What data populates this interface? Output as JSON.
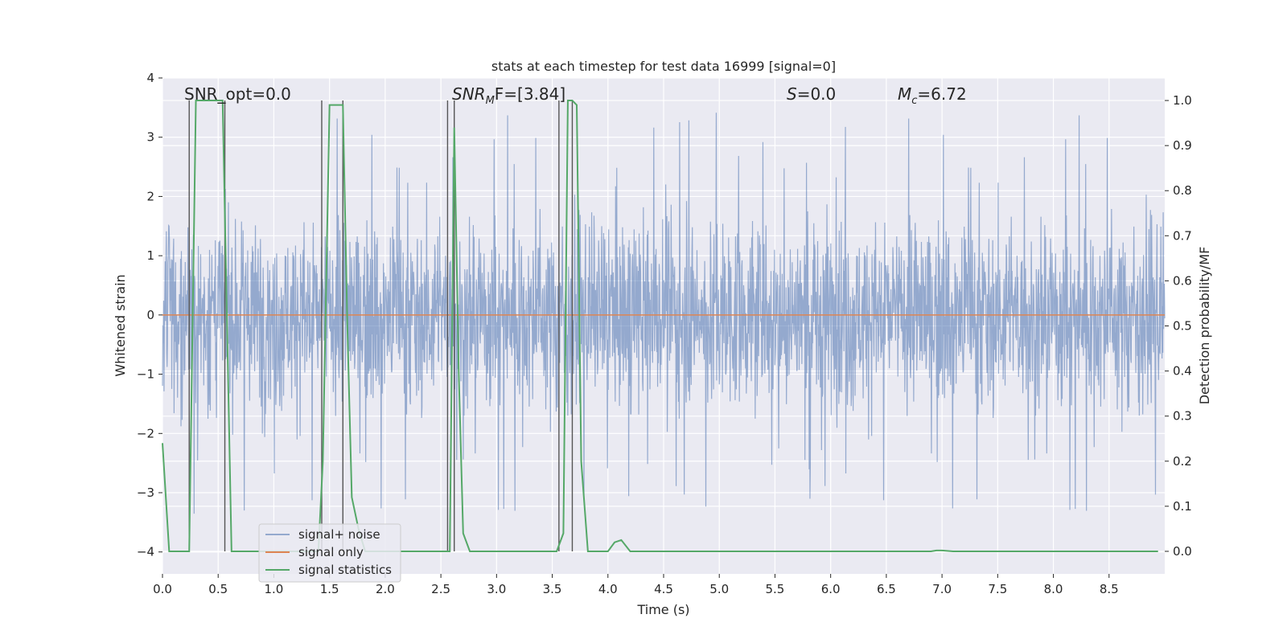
{
  "chart_data": {
    "type": "line",
    "title": "stats at each timestep for test data 16999 [signal=0]",
    "xlabel": "Time (s)",
    "ylabel_left": "Whitened strain",
    "ylabel_right": "Detection probability/MF",
    "xlim": [
      0.0,
      9.0
    ],
    "ylim_left": [
      -4.37,
      4.0
    ],
    "ylim_right": [
      -0.05,
      1.05
    ],
    "x_ticks": [
      "0.0",
      "0.5",
      "1.0",
      "1.5",
      "2.0",
      "2.5",
      "3.0",
      "3.5",
      "4.0",
      "4.5",
      "5.0",
      "5.5",
      "6.0",
      "6.5",
      "7.0",
      "7.5",
      "8.0",
      "8.5"
    ],
    "y_ticks_left": [
      "4",
      "3",
      "2",
      "1",
      "0",
      "−1",
      "−2",
      "−3",
      "−4"
    ],
    "y_ticks_right": [
      "1.0",
      "0.9",
      "0.8",
      "0.7",
      "0.6",
      "0.5",
      "0.4",
      "0.3",
      "0.2",
      "0.1",
      "0.0"
    ],
    "grid": true,
    "legend_position": "lower-left",
    "annotations": {
      "snr_opt": "SNR_opt=0.0",
      "snr_mf_base": "SNR",
      "snr_mf_sub": "M",
      "snr_mf_rest": "F=[3.84]",
      "s_italic": "S",
      "s_value": "=0.0",
      "mc_base": "M",
      "mc_sub": "c",
      "mc_value": "=6.72"
    },
    "series": [
      {
        "name": "signal+ noise",
        "color": "#4c72b0",
        "description": "whitened noisy strain, roughly within ±2 with spikes to ±3.6"
      },
      {
        "name": "signal only",
        "color": "#dd8452",
        "values_constant": 0.0
      },
      {
        "name": "signal statistics",
        "color": "#55a868",
        "axis": "right",
        "x": [
          0.0,
          0.06,
          0.12,
          0.18,
          0.24,
          0.3,
          0.36,
          0.42,
          0.48,
          0.54,
          0.58,
          0.62,
          0.68,
          0.74,
          0.8,
          0.86,
          0.92,
          0.98,
          1.04,
          1.1,
          1.16,
          1.22,
          1.28,
          1.34,
          1.4,
          1.44,
          1.5,
          1.56,
          1.62,
          1.66,
          1.7,
          1.76,
          1.82,
          1.88,
          1.94,
          2.0,
          2.06,
          2.12,
          2.18,
          2.24,
          2.3,
          2.36,
          2.42,
          2.48,
          2.54,
          2.58,
          2.62,
          2.66,
          2.7,
          2.76,
          2.82,
          2.88,
          2.94,
          3.0,
          3.06,
          3.12,
          3.18,
          3.24,
          3.3,
          3.36,
          3.42,
          3.48,
          3.54,
          3.6,
          3.64,
          3.68,
          3.72,
          3.76,
          3.82,
          3.88,
          3.94,
          4.0,
          4.06,
          4.12,
          4.2,
          4.3,
          4.4,
          4.6,
          5.0,
          5.5,
          6.0,
          6.5,
          6.9,
          6.95,
          7.0,
          7.1,
          7.5,
          8.0,
          8.5,
          8.94
        ],
        "values": [
          0.24,
          0.0,
          0.0,
          0.0,
          0.0,
          1.0,
          1.0,
          1.0,
          1.0,
          1.0,
          0.5,
          0.0,
          0.0,
          0.0,
          0.0,
          0.0,
          0.0,
          0.0,
          0.0,
          0.0,
          0.0,
          0.0,
          0.0,
          0.0,
          0.0,
          0.2,
          0.99,
          0.99,
          0.99,
          0.5,
          0.12,
          0.05,
          0.0,
          0.0,
          0.0,
          0.0,
          0.0,
          0.0,
          0.0,
          0.0,
          0.0,
          0.0,
          0.0,
          0.0,
          0.0,
          0.0,
          0.94,
          0.4,
          0.04,
          0.0,
          0.0,
          0.0,
          0.0,
          0.0,
          0.0,
          0.0,
          0.0,
          0.0,
          0.0,
          0.0,
          0.0,
          0.0,
          0.0,
          0.04,
          1.0,
          1.0,
          0.99,
          0.2,
          0.0,
          0.0,
          0.0,
          0.0,
          0.02,
          0.025,
          0.0,
          0.0,
          0.0,
          0.0,
          0.0,
          0.0,
          0.0,
          0.0,
          0.0,
          0.002,
          0.002,
          0.0,
          0.0,
          0.0,
          0.0,
          0.0
        ]
      }
    ],
    "detection_markers": [
      0.24,
      0.56,
      1.43,
      1.62,
      2.56,
      2.62,
      3.56,
      3.68
    ]
  }
}
